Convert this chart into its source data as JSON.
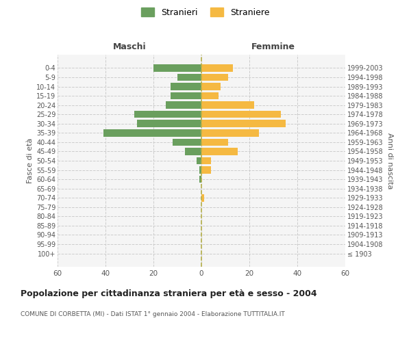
{
  "age_groups": [
    "100+",
    "95-99",
    "90-94",
    "85-89",
    "80-84",
    "75-79",
    "70-74",
    "65-69",
    "60-64",
    "55-59",
    "50-54",
    "45-49",
    "40-44",
    "35-39",
    "30-34",
    "25-29",
    "20-24",
    "15-19",
    "10-14",
    "5-9",
    "0-4"
  ],
  "birth_years": [
    "≤ 1903",
    "1904-1908",
    "1909-1913",
    "1914-1918",
    "1919-1923",
    "1924-1928",
    "1929-1933",
    "1934-1938",
    "1939-1943",
    "1944-1948",
    "1949-1953",
    "1954-1958",
    "1959-1963",
    "1964-1968",
    "1969-1973",
    "1974-1978",
    "1979-1983",
    "1984-1988",
    "1989-1993",
    "1994-1998",
    "1999-2003"
  ],
  "males": [
    0,
    0,
    0,
    0,
    0,
    0,
    0,
    0,
    1,
    1,
    2,
    7,
    12,
    41,
    27,
    28,
    15,
    13,
    13,
    10,
    20
  ],
  "females": [
    0,
    0,
    0,
    0,
    0,
    0,
    1,
    0,
    0,
    4,
    4,
    15,
    11,
    24,
    35,
    33,
    22,
    7,
    8,
    11,
    13
  ],
  "male_color": "#6a9f5e",
  "female_color": "#f5b942",
  "center_line_color": "#b5b04a",
  "grid_color": "#cccccc",
  "title": "Popolazione per cittadinanza straniera per età e sesso - 2004",
  "subtitle": "COMUNE DI CORBETTA (MI) - Dati ISTAT 1° gennaio 2004 - Elaborazione TUTTITALIA.IT",
  "xlabel_left": "Maschi",
  "xlabel_right": "Femmine",
  "ylabel_left": "Fasce di età",
  "ylabel_right": "Anni di nascita",
  "legend_males": "Stranieri",
  "legend_females": "Straniere",
  "xlim": 60,
  "background_color": "#ffffff",
  "plot_bg_color": "#f5f5f5"
}
